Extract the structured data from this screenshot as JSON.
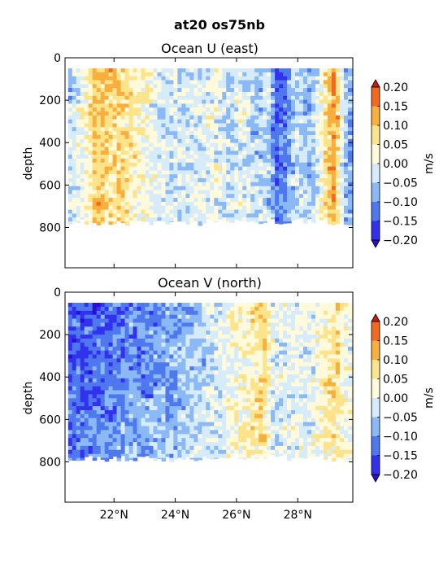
{
  "figure": {
    "suptitle": "at20 os75nb"
  },
  "chart_data": [
    {
      "type": "heatmap",
      "title": "Ocean U (east)",
      "xlabel": "",
      "ylabel": "depth",
      "xlim": [
        20.4,
        29.8
      ],
      "ylim": [
        990,
        0
      ],
      "x_ticks": [
        {
          "value": 22,
          "label": "22°N"
        },
        {
          "value": 24,
          "label": "24°N"
        },
        {
          "value": 26,
          "label": "26°N"
        },
        {
          "value": 28,
          "label": "28°N"
        }
      ],
      "y_ticks": [
        {
          "value": 0,
          "label": "0"
        },
        {
          "value": 200,
          "label": "200"
        },
        {
          "value": 400,
          "label": "400"
        },
        {
          "value": 600,
          "label": "600"
        },
        {
          "value": 800,
          "label": "800"
        }
      ],
      "data_depth_range": [
        50,
        790
      ],
      "colorbar": {
        "label": "m/s",
        "levels": [
          -0.2,
          -0.15,
          -0.1,
          -0.05,
          0.0,
          0.05,
          0.1,
          0.15,
          0.2
        ],
        "tick_labels": [
          "−0.20",
          "−0.15",
          "−0.10",
          "−0.05",
          "0.00",
          "0.05",
          "0.10",
          "0.15",
          "0.20"
        ],
        "colors": [
          "#3232ee",
          "#4f78ef",
          "#8ab9f5",
          "#d6ecfb",
          "#fffadc",
          "#fde389",
          "#f9af3d",
          "#f26a1f"
        ],
        "extend_low_color": "#2a0dd6",
        "extend_high_color": "#cc1d10"
      },
      "profile": [
        {
          "lat": 20.5,
          "v": -0.06
        },
        {
          "lat": 21.0,
          "v": 0.02
        },
        {
          "lat": 21.4,
          "v": 0.12
        },
        {
          "lat": 21.8,
          "v": 0.1
        },
        {
          "lat": 22.3,
          "v": 0.07
        },
        {
          "lat": 22.8,
          "v": 0.04
        },
        {
          "lat": 23.3,
          "v": 0.0
        },
        {
          "lat": 23.8,
          "v": -0.03
        },
        {
          "lat": 24.3,
          "v": -0.02
        },
        {
          "lat": 24.8,
          "v": -0.03
        },
        {
          "lat": 25.3,
          "v": 0.01
        },
        {
          "lat": 25.8,
          "v": -0.04
        },
        {
          "lat": 26.2,
          "v": 0.0
        },
        {
          "lat": 26.6,
          "v": -0.06
        },
        {
          "lat": 27.0,
          "v": -0.03
        },
        {
          "lat": 27.3,
          "v": -0.15
        },
        {
          "lat": 27.6,
          "v": -0.12
        },
        {
          "lat": 28.0,
          "v": -0.03
        },
        {
          "lat": 28.4,
          "v": -0.08
        },
        {
          "lat": 28.8,
          "v": 0.03
        },
        {
          "lat": 29.2,
          "v": 0.15
        },
        {
          "lat": 29.6,
          "v": -0.09
        }
      ]
    },
    {
      "type": "heatmap",
      "title": "Ocean V (north)",
      "xlabel": "",
      "ylabel": "depth",
      "xlim": [
        20.4,
        29.8
      ],
      "ylim": [
        990,
        0
      ],
      "x_ticks": [
        {
          "value": 22,
          "label": "22°N"
        },
        {
          "value": 24,
          "label": "24°N"
        },
        {
          "value": 26,
          "label": "26°N"
        },
        {
          "value": 28,
          "label": "28°N"
        }
      ],
      "y_ticks": [
        {
          "value": 0,
          "label": "0"
        },
        {
          "value": 200,
          "label": "200"
        },
        {
          "value": 400,
          "label": "400"
        },
        {
          "value": 600,
          "label": "600"
        },
        {
          "value": 800,
          "label": "800"
        }
      ],
      "data_depth_range": [
        50,
        800
      ],
      "colorbar": {
        "label": "m/s",
        "levels": [
          -0.2,
          -0.15,
          -0.1,
          -0.05,
          0.0,
          0.05,
          0.1,
          0.15,
          0.2
        ],
        "tick_labels": [
          "−0.20",
          "−0.15",
          "−0.10",
          "−0.05",
          "0.00",
          "0.05",
          "0.10",
          "0.15",
          "0.20"
        ],
        "colors": [
          "#3232ee",
          "#4f78ef",
          "#8ab9f5",
          "#d6ecfb",
          "#fffadc",
          "#fde389",
          "#f9af3d",
          "#f26a1f"
        ],
        "extend_low_color": "#2a0dd6",
        "extend_high_color": "#cc1d10"
      },
      "profile": [
        {
          "lat": 20.5,
          "v": -0.17
        },
        {
          "lat": 21.0,
          "v": -0.16
        },
        {
          "lat": 21.5,
          "v": -0.14
        },
        {
          "lat": 22.0,
          "v": -0.13
        },
        {
          "lat": 22.5,
          "v": -0.11
        },
        {
          "lat": 23.0,
          "v": -0.12
        },
        {
          "lat": 23.5,
          "v": -0.09
        },
        {
          "lat": 24.0,
          "v": -0.08
        },
        {
          "lat": 24.5,
          "v": -0.06
        },
        {
          "lat": 25.0,
          "v": -0.04
        },
        {
          "lat": 25.5,
          "v": -0.01
        },
        {
          "lat": 26.0,
          "v": 0.03
        },
        {
          "lat": 26.5,
          "v": 0.05
        },
        {
          "lat": 26.9,
          "v": 0.09
        },
        {
          "lat": 27.3,
          "v": -0.03
        },
        {
          "lat": 27.8,
          "v": 0.01
        },
        {
          "lat": 28.3,
          "v": -0.02
        },
        {
          "lat": 28.8,
          "v": 0.04
        },
        {
          "lat": 29.2,
          "v": 0.08
        },
        {
          "lat": 29.6,
          "v": 0.01
        }
      ]
    }
  ]
}
